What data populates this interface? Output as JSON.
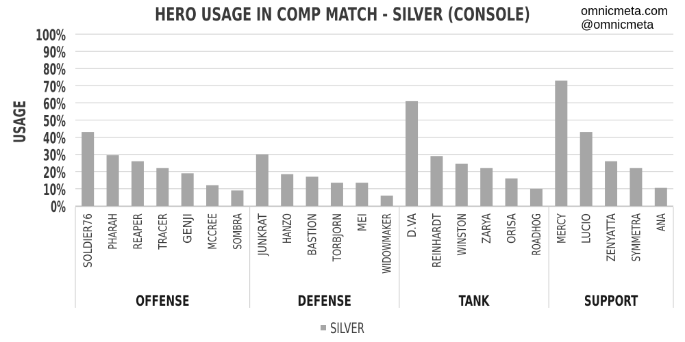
{
  "watermark": {
    "site": "omnicmeta.com",
    "handle": "@omnicmeta"
  },
  "chart_data": {
    "type": "bar",
    "title": "HERO USAGE IN COMP MATCH - SILVER (CONSOLE)",
    "ylabel": "USAGE",
    "xlabel": "",
    "ylim": [
      0,
      100
    ],
    "yticks": [
      "0%",
      "10%",
      "20%",
      "30%",
      "40%",
      "50%",
      "60%",
      "70%",
      "80%",
      "90%",
      "100%"
    ],
    "grid": true,
    "legend_position": "bottom",
    "bar_color": "#a6a6a6",
    "groups": [
      {
        "label": "OFFENSE",
        "categories": [
          "SOLDIER76",
          "PHARAH",
          "REAPER",
          "TRACER",
          "GENJI",
          "MCCREE",
          "SOMBRA"
        ]
      },
      {
        "label": "DEFENSE",
        "categories": [
          "JUNKRAT",
          "HANZO",
          "BASTION",
          "TORBJORN",
          "MEI",
          "WIDOWMAKER"
        ]
      },
      {
        "label": "TANK",
        "categories": [
          "D.VA",
          "REINHARDT",
          "WINSTON",
          "ZARYA",
          "ORISA",
          "ROADHOG"
        ]
      },
      {
        "label": "SUPPORT",
        "categories": [
          "MERCY",
          "LUCIO",
          "ZENYATTA",
          "SYMMETRA",
          "ANA"
        ]
      }
    ],
    "series": [
      {
        "name": "SILVER",
        "values": [
          43,
          29.5,
          26,
          22,
          19,
          12,
          9,
          30,
          18.5,
          17,
          13.5,
          13.5,
          6,
          61,
          29,
          24.5,
          22,
          16,
          10,
          73,
          43,
          26,
          22,
          10.5
        ]
      }
    ]
  }
}
